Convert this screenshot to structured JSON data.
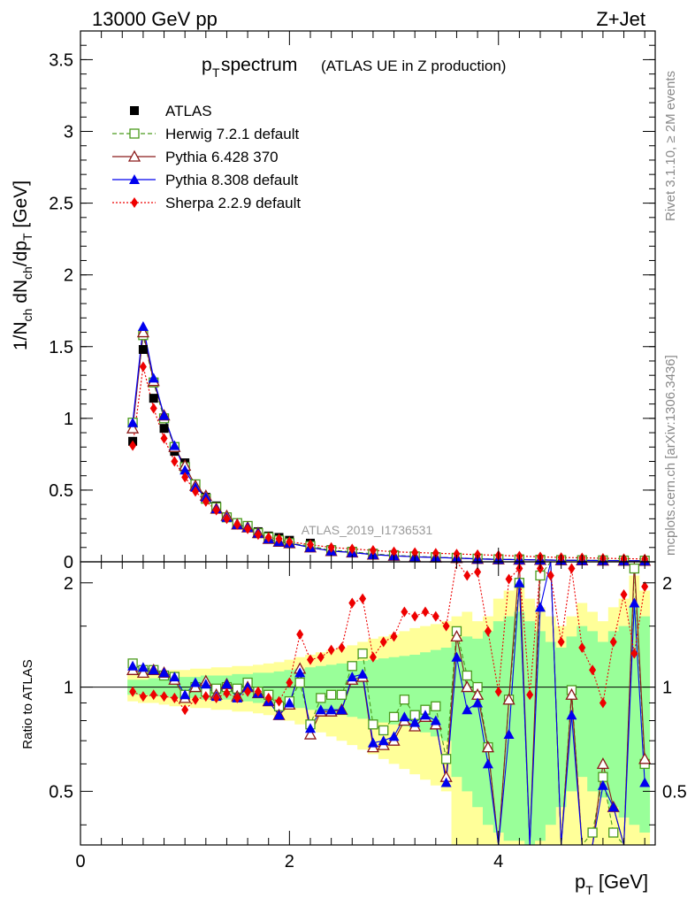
{
  "header": {
    "left": "13000 GeV pp",
    "right": "Z+Jet"
  },
  "main": {
    "title_main": "p",
    "title_sub": "T",
    "title_rest": " spectrum",
    "title_paren": "(ATLAS UE in Z production)",
    "ylabel_top": "1/N_ch dN_ch/dp_T [GeV]",
    "ylabel_bottom": "Ratio to ATLAS",
    "xlabel": "p_T [GeV]",
    "watermark": "ATLAS_2019_I1736531",
    "side_text_top": "Rivet 3.1.10, ≥ 2M events",
    "side_text_bottom": "mcplots.cern.ch [arXiv:1306.3436]"
  },
  "legend": [
    {
      "label": "ATLAS",
      "color": "#000000",
      "marker": "square-filled",
      "line": "none"
    },
    {
      "label": "Herwig 7.2.1 default",
      "color": "#4a9a1c",
      "marker": "square-open",
      "line": "dashed"
    },
    {
      "label": "Pythia 6.428 370",
      "color": "#8b1a1a",
      "marker": "triangle-open",
      "line": "solid"
    },
    {
      "label": "Pythia 8.308 default",
      "color": "#0000ee",
      "marker": "triangle-filled",
      "line": "solid"
    },
    {
      "label": "Sherpa 2.2.9 default",
      "color": "#ee0000",
      "marker": "diamond-filled",
      "line": "dotted"
    }
  ],
  "chart_data": {
    "type": "line",
    "top": {
      "xlim": [
        0,
        5.5
      ],
      "ylim": [
        0,
        3.7
      ],
      "xticks": [
        0,
        2,
        4
      ],
      "yticks": [
        0,
        0.5,
        1,
        1.5,
        2,
        2.5,
        3,
        3.5
      ],
      "ytick_labels": [
        "0",
        "0.5",
        "1",
        "1.5",
        "2",
        "2.5",
        "3",
        "3.5"
      ],
      "x": [
        0.5,
        0.6,
        0.7,
        0.8,
        0.9,
        1.0,
        1.1,
        1.2,
        1.3,
        1.4,
        1.5,
        1.6,
        1.7,
        1.8,
        1.9,
        2.0,
        2.2,
        2.4,
        2.6,
        2.8,
        3.0,
        3.2,
        3.4,
        3.6,
        3.8,
        4.0,
        4.2,
        4.4,
        4.6,
        4.8,
        5.0,
        5.2,
        5.4
      ],
      "series": [
        {
          "name": "ATLAS",
          "values": [
            0.84,
            1.48,
            1.14,
            0.93,
            0.77,
            0.69,
            0.52,
            0.45,
            0.39,
            0.31,
            0.27,
            0.24,
            0.21,
            0.18,
            0.17,
            0.15,
            0.13,
            0.085,
            0.07,
            0.06,
            0.05,
            0.04,
            0.035,
            0.03,
            0.025,
            0.02,
            0.02,
            0.018,
            0.015,
            0.013,
            0.011,
            0.01,
            0.01
          ]
        },
        {
          "name": "Herwig 7.2.1 default",
          "values": [
            0.97,
            1.58,
            1.25,
            1.0,
            0.8,
            0.66,
            0.54,
            0.44,
            0.38,
            0.31,
            0.27,
            0.25,
            0.2,
            0.17,
            0.15,
            0.13,
            0.11,
            0.08,
            0.07,
            0.055,
            0.045,
            0.038,
            0.032,
            0.028,
            0.022,
            0.018,
            0.016,
            0.014,
            0.012,
            0.011,
            0.01,
            0.009,
            0.008
          ]
        },
        {
          "name": "Pythia 6.428 370",
          "values": [
            0.93,
            1.6,
            1.26,
            1.02,
            0.8,
            0.67,
            0.53,
            0.46,
            0.37,
            0.32,
            0.26,
            0.24,
            0.2,
            0.16,
            0.14,
            0.13,
            0.1,
            0.075,
            0.065,
            0.05,
            0.042,
            0.035,
            0.03,
            0.026,
            0.02,
            0.017,
            0.015,
            0.013,
            0.011,
            0.01,
            0.009,
            0.008,
            0.007
          ]
        },
        {
          "name": "Pythia 8.308 default",
          "values": [
            0.97,
            1.64,
            1.28,
            1.02,
            0.81,
            0.64,
            0.52,
            0.45,
            0.37,
            0.31,
            0.26,
            0.24,
            0.2,
            0.16,
            0.14,
            0.13,
            0.1,
            0.075,
            0.065,
            0.05,
            0.042,
            0.035,
            0.03,
            0.026,
            0.02,
            0.017,
            0.015,
            0.013,
            0.011,
            0.01,
            0.009,
            0.008,
            0.007
          ]
        },
        {
          "name": "Sherpa 2.2.9 default",
          "values": [
            0.81,
            1.36,
            1.07,
            0.86,
            0.7,
            0.59,
            0.49,
            0.42,
            0.36,
            0.3,
            0.26,
            0.23,
            0.19,
            0.17,
            0.16,
            0.14,
            0.12,
            0.1,
            0.09,
            0.08,
            0.07,
            0.065,
            0.06,
            0.055,
            0.05,
            0.045,
            0.04,
            0.035,
            0.03,
            0.028,
            0.025,
            0.022,
            0.02
          ]
        }
      ]
    },
    "bottom": {
      "xlim": [
        0,
        5.5
      ],
      "ylim": [
        0.35,
        2.3
      ],
      "yticks": [
        0.5,
        1,
        2
      ],
      "ytick_labels": [
        "0.5",
        "1",
        "2"
      ],
      "reference_line": 1,
      "x": [
        0.5,
        0.6,
        0.7,
        0.8,
        0.9,
        1.0,
        1.1,
        1.2,
        1.3,
        1.4,
        1.5,
        1.6,
        1.7,
        1.8,
        1.9,
        2.0,
        2.1,
        2.2,
        2.3,
        2.4,
        2.5,
        2.6,
        2.7,
        2.8,
        2.9,
        3.0,
        3.1,
        3.2,
        3.3,
        3.4,
        3.5,
        3.6,
        3.7,
        3.8,
        3.9,
        4.0,
        4.1,
        4.2,
        4.3,
        4.4,
        4.5,
        4.6,
        4.7,
        4.8,
        4.9,
        5.0,
        5.1,
        5.2,
        5.3,
        5.4
      ],
      "band_yellow": {
        "low": [
          0.91,
          0.9,
          0.9,
          0.89,
          0.88,
          0.88,
          0.87,
          0.87,
          0.86,
          0.86,
          0.85,
          0.85,
          0.84,
          0.83,
          0.82,
          0.8,
          0.78,
          0.76,
          0.74,
          0.72,
          0.7,
          0.68,
          0.66,
          0.64,
          0.62,
          0.6,
          0.58,
          0.56,
          0.54,
          0.52,
          0.5,
          0.35,
          0.35,
          0.35,
          0.35,
          0.35,
          0.35,
          0.35,
          0.35,
          0.35,
          0.35,
          0.35,
          0.35,
          0.35,
          0.35,
          0.35,
          0.35,
          0.35,
          0.35,
          0.35
        ],
        "high": [
          1.09,
          1.1,
          1.1,
          1.11,
          1.12,
          1.12,
          1.13,
          1.13,
          1.14,
          1.14,
          1.15,
          1.15,
          1.16,
          1.17,
          1.18,
          1.2,
          1.22,
          1.24,
          1.26,
          1.28,
          1.3,
          1.32,
          1.35,
          1.38,
          1.4,
          1.42,
          1.45,
          1.48,
          1.5,
          1.52,
          1.55,
          1.6,
          1.65,
          1.55,
          1.6,
          1.8,
          1.9,
          2.0,
          1.8,
          1.7,
          1.6,
          1.5,
          1.6,
          1.75,
          1.65,
          1.55,
          1.7,
          1.8,
          2.1,
          1.9
        ]
      },
      "band_green": {
        "low": [
          0.95,
          0.95,
          0.94,
          0.94,
          0.93,
          0.93,
          0.93,
          0.92,
          0.92,
          0.92,
          0.91,
          0.91,
          0.9,
          0.9,
          0.89,
          0.88,
          0.87,
          0.86,
          0.85,
          0.84,
          0.83,
          0.82,
          0.81,
          0.8,
          0.79,
          0.78,
          0.77,
          0.76,
          0.74,
          0.72,
          0.7,
          0.55,
          0.5,
          0.45,
          0.4,
          0.38,
          0.36,
          0.36,
          0.35,
          0.36,
          0.4,
          0.45,
          0.5,
          0.55,
          0.5,
          0.48,
          0.45,
          0.42,
          0.4,
          0.38
        ],
        "high": [
          1.05,
          1.05,
          1.06,
          1.06,
          1.07,
          1.07,
          1.07,
          1.08,
          1.08,
          1.08,
          1.09,
          1.09,
          1.1,
          1.1,
          1.11,
          1.12,
          1.13,
          1.14,
          1.15,
          1.16,
          1.17,
          1.18,
          1.19,
          1.2,
          1.21,
          1.22,
          1.23,
          1.24,
          1.26,
          1.28,
          1.3,
          1.35,
          1.4,
          1.38,
          1.45,
          1.55,
          1.6,
          1.65,
          1.55,
          1.45,
          1.35,
          1.3,
          1.4,
          1.5,
          1.45,
          1.35,
          1.45,
          1.5,
          1.7,
          1.6
        ]
      },
      "series": [
        {
          "name": "Herwig 7.2.1 default",
          "values": [
            1.17,
            1.12,
            1.12,
            1.08,
            1.07,
            0.95,
            1.0,
            0.97,
            0.99,
            1.0,
            0.99,
            1.03,
            0.97,
            0.95,
            0.88,
            0.91,
            1.03,
            0.78,
            0.93,
            0.95,
            0.95,
            1.15,
            1.25,
            0.78,
            0.75,
            0.82,
            0.92,
            0.83,
            0.86,
            0.88,
            0.62,
            1.45,
            1.08,
            1.0,
            0.67,
            0.35,
            0.92,
            2.0,
            0.35,
            2.1,
            3.0,
            0.35,
            0.98,
            0.35,
            0.38,
            0.55,
            0.38,
            0.35,
            2.2,
            0.6
          ]
        },
        {
          "name": "Pythia 6.428 370",
          "values": [
            1.12,
            1.1,
            1.12,
            1.1,
            1.05,
            0.93,
            1.0,
            1.04,
            0.95,
            1.02,
            0.94,
            1.0,
            0.96,
            0.91,
            0.83,
            0.89,
            1.13,
            0.73,
            0.85,
            0.85,
            0.86,
            1.05,
            1.07,
            0.67,
            0.68,
            0.7,
            0.8,
            0.77,
            0.82,
            0.78,
            0.55,
            1.4,
            1.0,
            0.95,
            0.67,
            0.35,
            0.92,
            2.3,
            0.35,
            2.3,
            3.0,
            0.35,
            0.95,
            0.35,
            0.35,
            0.6,
            0.45,
            0.35,
            2.3,
            0.62
          ]
        },
        {
          "name": "Pythia 8.308 default",
          "values": [
            1.15,
            1.14,
            1.12,
            1.1,
            1.07,
            0.95,
            1.03,
            1.02,
            0.94,
            1.02,
            0.93,
            1.0,
            0.96,
            0.91,
            0.83,
            0.9,
            1.1,
            0.76,
            0.86,
            0.86,
            0.86,
            1.07,
            1.09,
            0.69,
            0.7,
            0.72,
            0.82,
            0.79,
            0.83,
            0.8,
            0.53,
            1.22,
            0.86,
            0.9,
            0.6,
            0.35,
            0.73,
            2.0,
            0.35,
            1.7,
            3.0,
            0.35,
            0.83,
            0.35,
            0.35,
            0.52,
            0.45,
            0.35,
            1.75,
            0.53
          ]
        },
        {
          "name": "Sherpa 2.2.9 default",
          "values": [
            0.97,
            0.94,
            0.95,
            0.94,
            0.93,
            0.86,
            0.92,
            0.94,
            0.93,
            0.96,
            0.93,
            0.97,
            0.97,
            0.93,
            0.91,
            1.03,
            1.42,
            1.2,
            1.22,
            1.28,
            1.3,
            1.75,
            1.8,
            1.22,
            1.35,
            1.4,
            1.65,
            1.6,
            1.65,
            1.6,
            1.5,
            2.3,
            2.1,
            2.15,
            1.45,
            0.97,
            2.05,
            2.2,
            0.95,
            2.2,
            2.1,
            1.35,
            2.2,
            1.3,
            1.12,
            0.9,
            1.35,
            1.85,
            1.25,
            1.95
          ]
        }
      ]
    },
    "xtick_labels": [
      "0",
      "2",
      "4"
    ]
  }
}
